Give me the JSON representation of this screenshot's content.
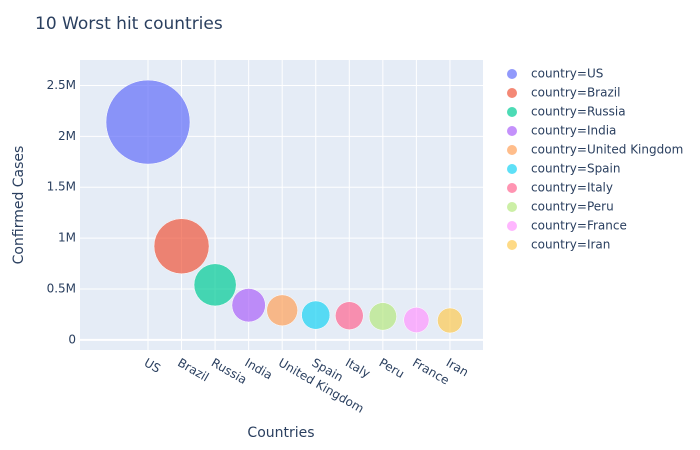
{
  "chart_data": {
    "type": "bubble",
    "title": "10 Worst hit countries",
    "x_label": "Countries",
    "y_label": "Confirmed Cases",
    "categories": [
      "US",
      "Brazil",
      "Russia",
      "India",
      "United Kingdom",
      "Spain",
      "Italy",
      "Peru",
      "France",
      "Iran"
    ],
    "values": [
      2140000,
      920000,
      540000,
      340000,
      290000,
      243000,
      237000,
      230000,
      195000,
      190000
    ],
    "colors": [
      "#636efa",
      "#EF553B",
      "#00cc96",
      "#ab63fa",
      "#FFA15A",
      "#19d3f3",
      "#FF6692",
      "#B6E880",
      "#FF97FF",
      "#FECB52"
    ],
    "legend_labels": [
      "country=US",
      "country=Brazil",
      "country=Russia",
      "country=India",
      "country=United Kingdom",
      "country=Spain",
      "country=Italy",
      "country=Peru",
      "country=France",
      "country=Iran"
    ],
    "ylim": [
      -100000,
      2750000
    ],
    "yticks": [
      0,
      {
        "value": 500000,
        "label": "0.5M"
      },
      {
        "value": 1000000,
        "label": "1M"
      },
      {
        "value": 1500000,
        "label": "1.5M"
      },
      {
        "value": 2000000,
        "label": "2M"
      },
      {
        "value": 2500000,
        "label": "2.5M"
      }
    ],
    "grid": true
  }
}
